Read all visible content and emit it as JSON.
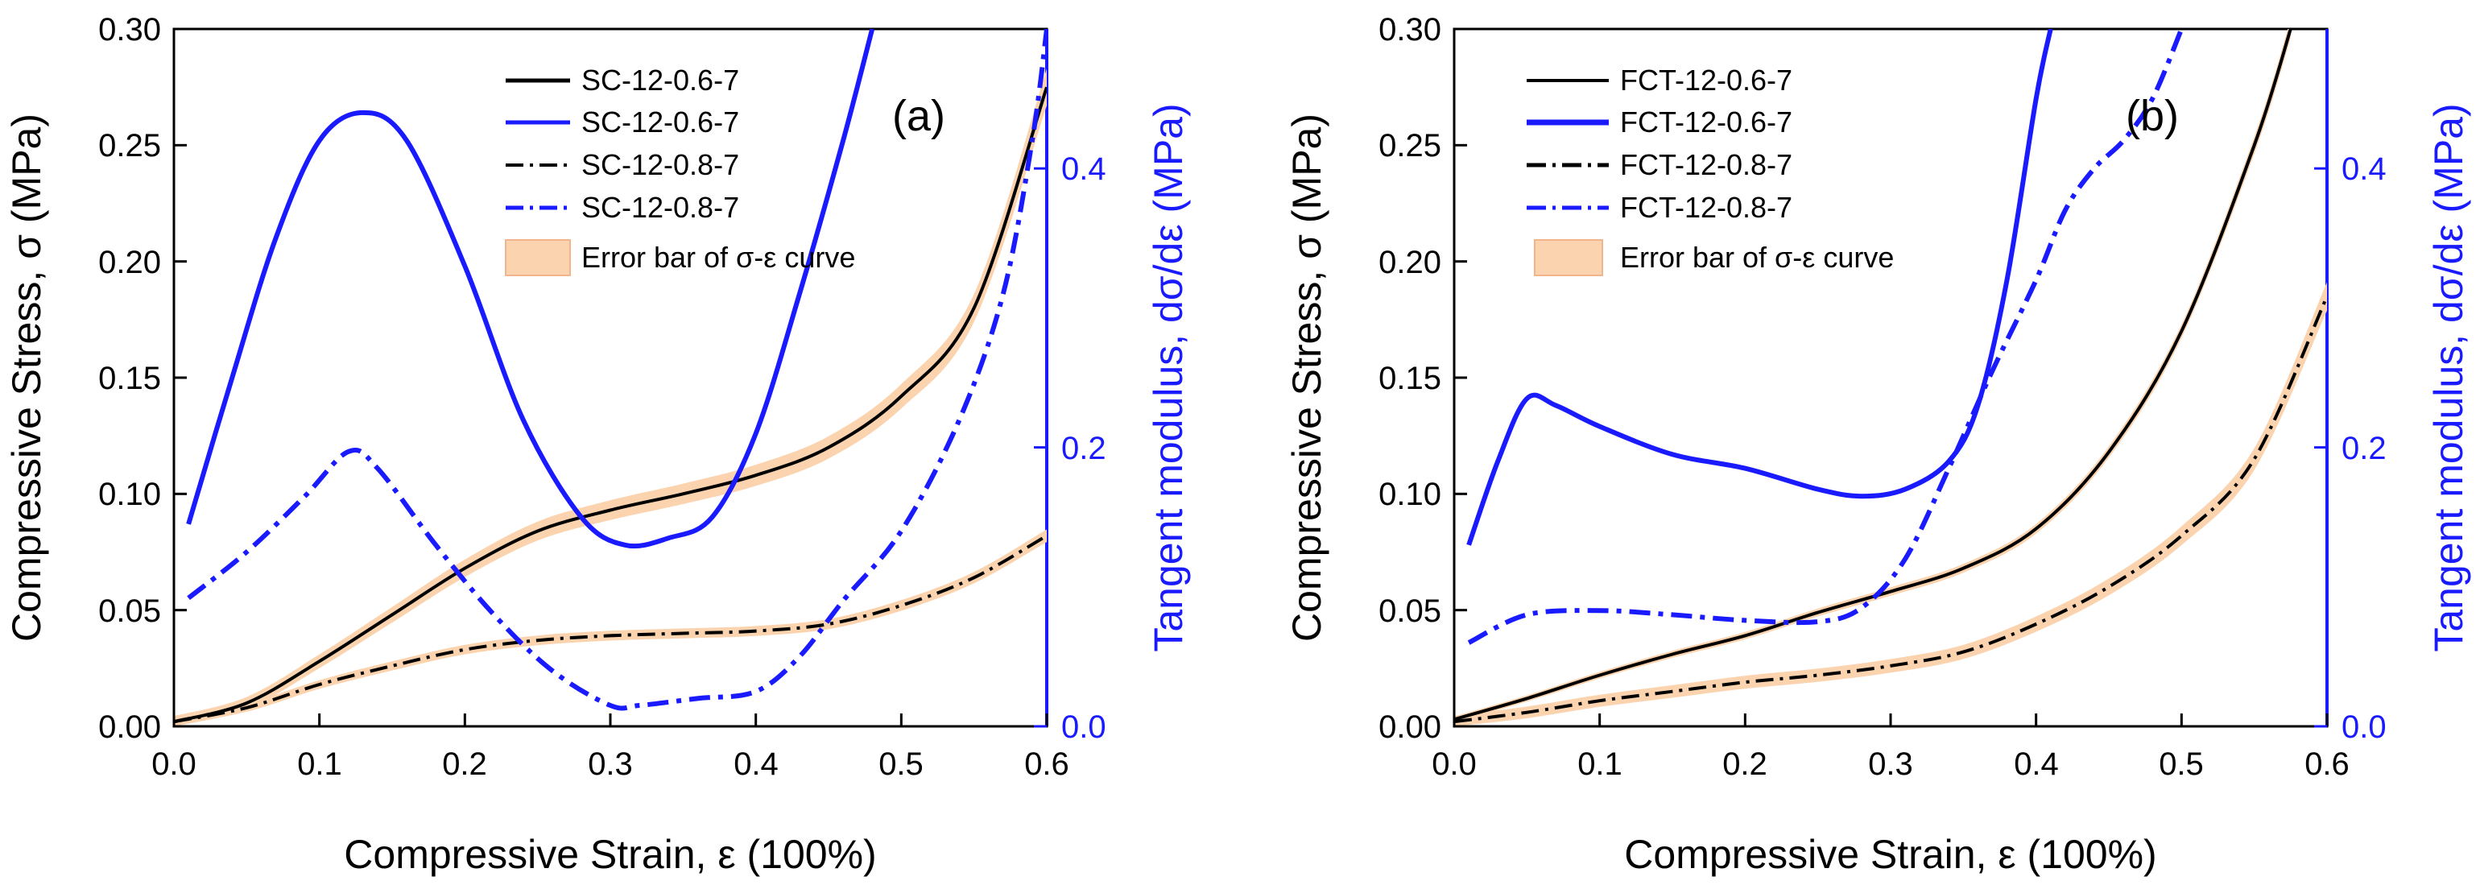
{
  "chart_data": [
    {
      "type": "line",
      "panel_label": "(a)",
      "xlabel": "Compressive Strain, ε (100%)",
      "ylabel": "Compressive Stress, σ (MPa)",
      "ylabel_right": "Tangent modulus, dσ/dε (MPa)",
      "xlim": [
        0.0,
        0.6
      ],
      "ylim": [
        0.0,
        0.3
      ],
      "ylim_right": [
        0.0,
        0.5
      ],
      "x_ticks": [
        "0.0",
        "0.1",
        "0.2",
        "0.3",
        "0.4",
        "0.5",
        "0.6"
      ],
      "y_ticks": [
        "0.00",
        "0.05",
        "0.10",
        "0.15",
        "0.20",
        "0.25",
        "0.30"
      ],
      "y_ticks_right": [
        "0.0",
        "0.2",
        "0.4"
      ],
      "legend": {
        "position": "top-right",
        "entries": [
          "SC-12-0.6-7",
          "SC-12-0.6-7",
          "SC-12-0.8-7",
          "SC-12-0.8-7",
          "Error bar of σ-ε curve"
        ]
      },
      "series": [
        {
          "name": "SC-12-0.6-7",
          "axis": "left",
          "style": "solid",
          "color": "#000000",
          "band": 0.006,
          "x": [
            0.0,
            0.05,
            0.1,
            0.15,
            0.2,
            0.25,
            0.3,
            0.35,
            0.4,
            0.45,
            0.5,
            0.55,
            0.6
          ],
          "y": [
            0.002,
            0.01,
            0.028,
            0.048,
            0.068,
            0.084,
            0.093,
            0.1,
            0.108,
            0.12,
            0.142,
            0.18,
            0.275
          ]
        },
        {
          "name": "SC-12-0.6-7",
          "axis": "right",
          "style": "solid",
          "color": "#1a1aff",
          "band": 0,
          "x": [
            0.01,
            0.04,
            0.07,
            0.1,
            0.13,
            0.16,
            0.2,
            0.24,
            0.28,
            0.31,
            0.34,
            0.37,
            0.4,
            0.43,
            0.46,
            0.48
          ],
          "y": [
            0.145,
            0.25,
            0.35,
            0.42,
            0.44,
            0.42,
            0.33,
            0.22,
            0.15,
            0.13,
            0.135,
            0.15,
            0.21,
            0.31,
            0.42,
            0.5
          ]
        },
        {
          "name": "SC-12-0.8-7",
          "axis": "left",
          "style": "dashdot",
          "color": "#000000",
          "band": 0.004,
          "x": [
            0.0,
            0.05,
            0.1,
            0.15,
            0.2,
            0.25,
            0.3,
            0.35,
            0.4,
            0.45,
            0.5,
            0.55,
            0.6
          ],
          "y": [
            0.002,
            0.008,
            0.018,
            0.026,
            0.033,
            0.037,
            0.039,
            0.04,
            0.041,
            0.044,
            0.052,
            0.064,
            0.082
          ]
        },
        {
          "name": "SC-12-0.8-7",
          "axis": "right",
          "style": "dashdot",
          "color": "#1a1aff",
          "band": 0,
          "x": [
            0.01,
            0.05,
            0.09,
            0.12,
            0.14,
            0.18,
            0.22,
            0.26,
            0.3,
            0.32,
            0.36,
            0.4,
            0.43,
            0.46,
            0.5,
            0.54,
            0.57,
            0.59,
            0.6
          ],
          "y": [
            0.092,
            0.125,
            0.165,
            0.197,
            0.185,
            0.13,
            0.08,
            0.04,
            0.015,
            0.015,
            0.02,
            0.025,
            0.05,
            0.09,
            0.14,
            0.22,
            0.31,
            0.42,
            0.5
          ]
        }
      ]
    },
    {
      "type": "line",
      "panel_label": "(b)",
      "xlabel": "Compressive Strain, ε (100%)",
      "ylabel": "Compressive Stress, σ (MPa)",
      "ylabel_right": "Tangent modulus, dσ/dε (MPa)",
      "xlim": [
        0.0,
        0.6
      ],
      "ylim": [
        0.0,
        0.3
      ],
      "ylim_right": [
        0.0,
        0.5
      ],
      "x_ticks": [
        "0.0",
        "0.1",
        "0.2",
        "0.3",
        "0.4",
        "0.5",
        "0.6"
      ],
      "y_ticks": [
        "0.00",
        "0.05",
        "0.10",
        "0.15",
        "0.20",
        "0.25",
        "0.30"
      ],
      "y_ticks_right": [
        "0.0",
        "0.2",
        "0.4"
      ],
      "legend": {
        "position": "top-left",
        "entries": [
          "FCT-12-0.6-7",
          "FCT-12-0.6-7",
          "FCT-12-0.8-7",
          "FCT-12-0.8-7",
          "Error bar of σ-ε curve"
        ]
      },
      "series": [
        {
          "name": "FCT-12-0.6-7",
          "axis": "left",
          "style": "solid",
          "color": "#000000",
          "band": 0.003,
          "x": [
            0.0,
            0.05,
            0.1,
            0.15,
            0.2,
            0.25,
            0.3,
            0.35,
            0.4,
            0.45,
            0.5,
            0.55,
            0.575
          ],
          "y": [
            0.003,
            0.012,
            0.022,
            0.031,
            0.039,
            0.049,
            0.058,
            0.068,
            0.085,
            0.118,
            0.17,
            0.25,
            0.3
          ]
        },
        {
          "name": "FCT-12-0.6-7",
          "axis": "right",
          "style": "solid",
          "color": "#1a1aff",
          "band": 0,
          "x": [
            0.01,
            0.03,
            0.05,
            0.07,
            0.1,
            0.15,
            0.2,
            0.25,
            0.28,
            0.31,
            0.34,
            0.36,
            0.38,
            0.4,
            0.41
          ],
          "y": [
            0.13,
            0.19,
            0.235,
            0.23,
            0.215,
            0.195,
            0.185,
            0.17,
            0.165,
            0.17,
            0.19,
            0.23,
            0.32,
            0.45,
            0.5
          ]
        },
        {
          "name": "FCT-12-0.8-7",
          "axis": "left",
          "style": "dashdot",
          "color": "#000000",
          "band": 0.006,
          "x": [
            0.0,
            0.05,
            0.1,
            0.15,
            0.2,
            0.25,
            0.3,
            0.35,
            0.4,
            0.45,
            0.5,
            0.55,
            0.6
          ],
          "y": [
            0.002,
            0.006,
            0.011,
            0.015,
            0.019,
            0.022,
            0.026,
            0.032,
            0.044,
            0.06,
            0.082,
            0.115,
            0.185
          ]
        },
        {
          "name": "FCT-12-0.8-7",
          "axis": "right",
          "style": "dashdot",
          "color": "#1a1aff",
          "band": 0,
          "x": [
            0.01,
            0.05,
            0.1,
            0.15,
            0.2,
            0.25,
            0.28,
            0.31,
            0.34,
            0.37,
            0.4,
            0.42,
            0.44,
            0.46,
            0.48,
            0.5
          ],
          "y": [
            0.06,
            0.08,
            0.083,
            0.08,
            0.076,
            0.075,
            0.085,
            0.12,
            0.185,
            0.255,
            0.32,
            0.37,
            0.4,
            0.42,
            0.45,
            0.5
          ]
        }
      ]
    }
  ],
  "colors": {
    "axis_left": "#000000",
    "axis_right": "#1a1aff",
    "band_fill": "#fbd3ae"
  }
}
